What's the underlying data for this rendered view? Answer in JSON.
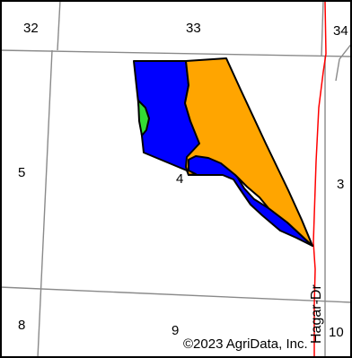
{
  "map": {
    "section_labels": [
      "32",
      "33",
      "34",
      "5",
      "4",
      "3",
      "8",
      "9",
      "10"
    ],
    "road_label": "Hagar-Dr",
    "copyright": "©2023 AgriData, Inc."
  },
  "colors": {
    "soil_blue": "#0000ff",
    "soil_orange": "#ffa500",
    "soil_green": "#33dd33",
    "section_line": "#8a8a8a",
    "road": "#ff0000",
    "frame": "#000000"
  }
}
